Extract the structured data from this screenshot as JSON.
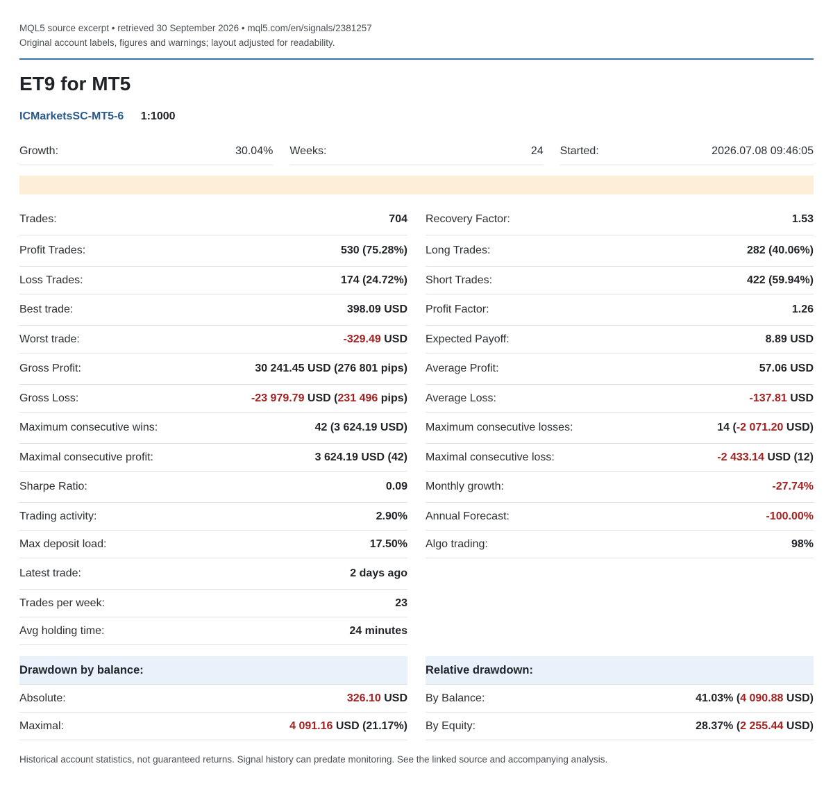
{
  "source": {
    "line1": "MQL5 source excerpt • retrieved 30 September 2026 • mql5.com/en/signals/2381257",
    "line2": "Original account labels, figures and warnings; layout adjusted for readability."
  },
  "title": "ET9 for MT5",
  "account": {
    "broker": "ICMarketsSC-MT5-6",
    "leverage": "1:1000"
  },
  "top": [
    {
      "label": "Growth:",
      "value": "30.04%"
    },
    {
      "label": "Weeks:",
      "value": "24"
    },
    {
      "label": "Started:",
      "value": "2026.07.08 09:46:05"
    }
  ],
  "left": [
    {
      "label": "Trades:",
      "parts": [
        {
          "t": "704"
        }
      ],
      "tall": true
    },
    {
      "label": "Profit Trades:",
      "parts": [
        {
          "t": "530 (75.28%)"
        }
      ],
      "tall": true
    },
    {
      "label": "Loss Trades:",
      "parts": [
        {
          "t": "174 (24.72%)"
        }
      ]
    },
    {
      "label": "Best trade:",
      "parts": [
        {
          "t": "398.09 USD"
        }
      ],
      "tall": true
    },
    {
      "label": "Worst trade:",
      "parts": [
        {
          "t": "-329.49",
          "neg": true
        },
        {
          "t": " USD"
        }
      ]
    },
    {
      "label": "Gross Profit:",
      "parts": [
        {
          "t": "30 241.45 USD (276 801 pips)"
        }
      ],
      "tall": true
    },
    {
      "label": "Gross Loss:",
      "parts": [
        {
          "t": "-23 979.79",
          "neg": true
        },
        {
          "t": " USD ("
        },
        {
          "t": "231 496",
          "neg": true
        },
        {
          "t": " pips)"
        }
      ]
    },
    {
      "label": "Maximum consecutive wins:",
      "parts": [
        {
          "t": "42 (3 624.19 USD)"
        }
      ],
      "tall": true
    },
    {
      "label": "Maximal consecutive profit:",
      "parts": [
        {
          "t": "3 624.19 USD (42)"
        }
      ]
    },
    {
      "label": "Sharpe Ratio:",
      "parts": [
        {
          "t": "0.09"
        }
      ],
      "tall": true
    },
    {
      "label": "Trading activity:",
      "parts": [
        {
          "t": "2.90%"
        }
      ]
    },
    {
      "label": "Max deposit load:",
      "parts": [
        {
          "t": "17.50%"
        }
      ]
    },
    {
      "label": "Latest trade:",
      "parts": [
        {
          "t": "2 days ago"
        }
      ],
      "tall": true
    },
    {
      "label": "Trades per week:",
      "parts": [
        {
          "t": "23"
        }
      ]
    },
    {
      "label": "Avg holding time:",
      "parts": [
        {
          "t": "24 minutes"
        }
      ]
    }
  ],
  "right": [
    {
      "label": "Recovery Factor:",
      "parts": [
        {
          "t": "1.53"
        }
      ],
      "tall": true
    },
    {
      "label": "Long Trades:",
      "parts": [
        {
          "t": "282 (40.06%)"
        }
      ],
      "tall": true
    },
    {
      "label": "Short Trades:",
      "parts": [
        {
          "t": "422 (59.94%)"
        }
      ]
    },
    {
      "label": "Profit Factor:",
      "parts": [
        {
          "t": "1.26"
        }
      ],
      "tall": true
    },
    {
      "label": "Expected Payoff:",
      "parts": [
        {
          "t": "8.89 USD"
        }
      ]
    },
    {
      "label": "Average Profit:",
      "parts": [
        {
          "t": "57.06 USD"
        }
      ],
      "tall": true
    },
    {
      "label": "Average Loss:",
      "parts": [
        {
          "t": "-137.81",
          "neg": true
        },
        {
          "t": " USD"
        }
      ]
    },
    {
      "label": "Maximum consecutive losses:",
      "parts": [
        {
          "t": "14 ("
        },
        {
          "t": "-2 071.20",
          "neg": true
        },
        {
          "t": " USD)"
        }
      ],
      "tall": true
    },
    {
      "label": "Maximal consecutive loss:",
      "parts": [
        {
          "t": "-2 433.14",
          "neg": true
        },
        {
          "t": " USD (12)"
        }
      ]
    },
    {
      "label": "Monthly growth:",
      "parts": [
        {
          "t": "-27.74%",
          "neg": true
        }
      ],
      "tall": true
    },
    {
      "label": "Annual Forecast:",
      "parts": [
        {
          "t": "-100.00%",
          "neg": true
        }
      ]
    },
    {
      "label": "Algo trading:",
      "parts": [
        {
          "t": "98%"
        }
      ]
    }
  ],
  "drawdown_balance": {
    "heading": "Drawdown by balance:",
    "rows": [
      {
        "label": "Absolute:",
        "parts": [
          {
            "t": "326.10",
            "neg": true
          },
          {
            "t": " USD"
          }
        ]
      },
      {
        "label": "Maximal:",
        "parts": [
          {
            "t": "4 091.16",
            "neg": true
          },
          {
            "t": " USD (21.17%)"
          }
        ]
      }
    ]
  },
  "relative_drawdown": {
    "heading": "Relative drawdown:",
    "rows": [
      {
        "label": "By Balance:",
        "parts": [
          {
            "t": "41.03% ("
          },
          {
            "t": "4 090.88",
            "neg": true
          },
          {
            "t": " USD)"
          }
        ]
      },
      {
        "label": "By Equity:",
        "parts": [
          {
            "t": "28.37% ("
          },
          {
            "t": "2 255.44",
            "neg": true
          },
          {
            "t": " USD)"
          }
        ]
      }
    ]
  },
  "footer": "Historical account statistics, not guaranteed returns. Signal history can predate monitoring. See the linked source and accompanying analysis.",
  "colors": {
    "accent_rule": "#3d6fa8",
    "negative": "#a32121",
    "warning_bar": "#fdefd7",
    "section_head": "#e9f1fb"
  }
}
